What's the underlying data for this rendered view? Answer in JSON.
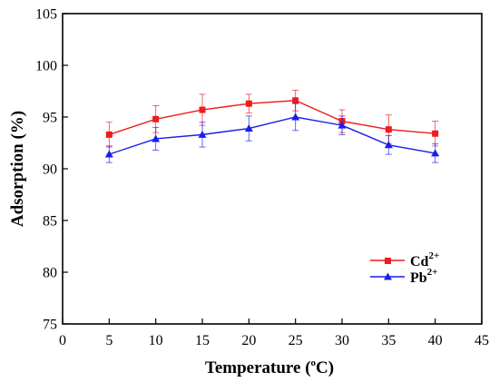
{
  "chart_data": {
    "type": "line",
    "title": "",
    "xlabel": "Temperature (",
    "xlabel_unit_sup": "o",
    "xlabel_unit": "C)",
    "ylabel": "Adsorption (%)",
    "xlim": [
      0,
      45
    ],
    "ylim": [
      75,
      105
    ],
    "xticks": [
      0,
      5,
      10,
      15,
      20,
      25,
      30,
      35,
      40,
      45
    ],
    "yticks": [
      75,
      80,
      85,
      90,
      95,
      100,
      105
    ],
    "grid": false,
    "legend_position": "bottom-right",
    "x": [
      5,
      10,
      15,
      20,
      25,
      30,
      35,
      40
    ],
    "series": [
      {
        "name": "Cd",
        "name_sup": "2+",
        "color": "#ee1c1c",
        "marker": "square",
        "values": [
          93.3,
          94.8,
          95.7,
          96.3,
          96.6,
          94.6,
          93.8,
          93.4
        ],
        "errors": [
          1.2,
          1.3,
          1.5,
          0.9,
          1.0,
          1.1,
          1.4,
          1.2
        ]
      },
      {
        "name": "Pb",
        "name_sup": "2+",
        "color": "#1c1cee",
        "marker": "triangle",
        "values": [
          91.4,
          92.9,
          93.3,
          93.9,
          95.0,
          94.2,
          92.3,
          91.5
        ],
        "errors": [
          0.8,
          1.1,
          1.2,
          1.2,
          1.3,
          0.9,
          0.9,
          0.9
        ]
      }
    ]
  }
}
